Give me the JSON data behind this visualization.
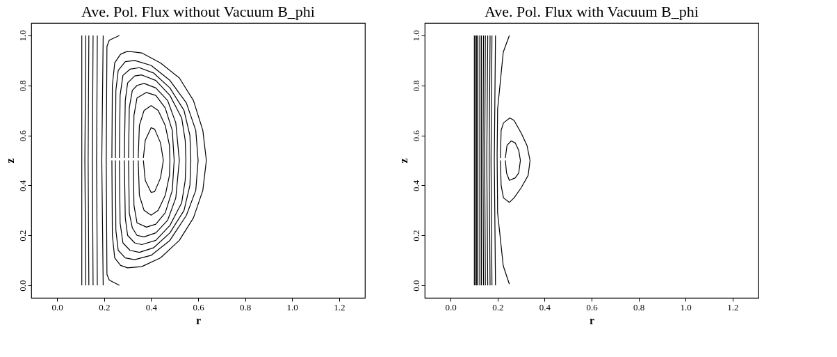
{
  "chart_data": [
    {
      "type": "line",
      "title": "Ave. Pol. Flux without Vacuum B_phi",
      "xlabel": "r",
      "ylabel": "z",
      "xlim": [
        -0.11,
        1.31
      ],
      "ylim": [
        -0.05,
        1.05
      ],
      "xticks": [
        {
          "value": 0,
          "label": "0.0"
        },
        {
          "value": 0.2,
          "label": "0.2"
        },
        {
          "value": 0.4,
          "label": "0.4"
        },
        {
          "value": 0.6,
          "label": "0.6"
        },
        {
          "value": 0.8,
          "label": "0.8"
        },
        {
          "value": 1,
          "label": "1.0"
        },
        {
          "value": 1.2,
          "label": "1.2"
        }
      ],
      "yticks": [
        {
          "value": 0,
          "label": "0.0"
        },
        {
          "value": 0.2,
          "label": "0.2"
        },
        {
          "value": 0.4,
          "label": "0.4"
        },
        {
          "value": 0.6,
          "label": "0.6"
        },
        {
          "value": 0.8,
          "label": "0.8"
        },
        {
          "value": 1,
          "label": "1.0"
        }
      ],
      "series": [
        {
          "color": "#000000",
          "x": [
            0.105,
            0.105
          ],
          "values": [
            0,
            1
          ]
        },
        {
          "color": "#000000",
          "x": [
            0.122,
            0.118,
            0.122
          ],
          "values": [
            0,
            0.5,
            1
          ]
        },
        {
          "color": "#000000",
          "x": [
            0.135,
            0.132,
            0.135
          ],
          "values": [
            0,
            0.5,
            1
          ]
        },
        {
          "color": "#000000",
          "x": [
            0.153,
            0.15,
            0.153
          ],
          "values": [
            0,
            0.5,
            1
          ]
        },
        {
          "color": "#000000",
          "x": [
            0.171,
            0.168,
            0.171
          ],
          "values": [
            0,
            0.5,
            1
          ]
        },
        {
          "color": "#000000",
          "x": [
            0.196,
            0.19,
            0.196
          ],
          "values": [
            0,
            0.5,
            1
          ]
        },
        {
          "color": "#000000",
          "x": [
            0.265,
            0.222,
            0.212,
            0.209,
            0.212,
            0.222,
            0.265
          ],
          "values": [
            1,
            0.981,
            0.956,
            0.5,
            0.044,
            0.021,
            0
          ]
        },
        {
          "color": "#000000",
          "x": [
            0.233,
            0.235,
            0.245,
            0.27,
            0.3,
            0.36,
            0.44,
            0.52,
            0.58,
            0.62,
            0.635,
            0.62,
            0.58,
            0.52,
            0.44,
            0.36,
            0.3,
            0.27,
            0.245,
            0.235,
            0.233
          ],
          "values": [
            0.51,
            0.8,
            0.89,
            0.925,
            0.937,
            0.93,
            0.89,
            0.83,
            0.74,
            0.62,
            0.5,
            0.38,
            0.27,
            0.18,
            0.11,
            0.075,
            0.07,
            0.08,
            0.11,
            0.2,
            0.5
          ]
        },
        {
          "color": "#000000",
          "x": [
            0.248,
            0.25,
            0.26,
            0.29,
            0.33,
            0.4,
            0.48,
            0.55,
            0.59,
            0.6,
            0.59,
            0.55,
            0.48,
            0.4,
            0.33,
            0.29,
            0.26,
            0.25,
            0.248
          ],
          "values": [
            0.51,
            0.78,
            0.86,
            0.895,
            0.9,
            0.88,
            0.82,
            0.73,
            0.62,
            0.5,
            0.38,
            0.28,
            0.18,
            0.12,
            0.103,
            0.11,
            0.14,
            0.22,
            0.5
          ]
        },
        {
          "color": "#000000",
          "x": [
            0.265,
            0.268,
            0.28,
            0.31,
            0.35,
            0.41,
            0.48,
            0.54,
            0.565,
            0.569,
            0.565,
            0.54,
            0.48,
            0.41,
            0.35,
            0.31,
            0.28,
            0.268,
            0.265
          ],
          "values": [
            0.51,
            0.76,
            0.84,
            0.865,
            0.871,
            0.85,
            0.79,
            0.7,
            0.6,
            0.5,
            0.4,
            0.3,
            0.21,
            0.15,
            0.132,
            0.14,
            0.17,
            0.25,
            0.5
          ]
        },
        {
          "color": "#000000",
          "x": [
            0.286,
            0.29,
            0.3,
            0.33,
            0.36,
            0.42,
            0.48,
            0.53,
            0.545,
            0.548,
            0.545,
            0.53,
            0.48,
            0.42,
            0.36,
            0.33,
            0.3,
            0.29,
            0.286
          ],
          "values": [
            0.51,
            0.74,
            0.81,
            0.838,
            0.842,
            0.82,
            0.76,
            0.67,
            0.58,
            0.5,
            0.42,
            0.33,
            0.24,
            0.18,
            0.163,
            0.17,
            0.2,
            0.27,
            0.5
          ]
        },
        {
          "color": "#000000",
          "x": [
            0.304,
            0.307,
            0.32,
            0.34,
            0.37,
            0.42,
            0.47,
            0.505,
            0.52,
            0.505,
            0.47,
            0.42,
            0.37,
            0.34,
            0.32,
            0.307,
            0.304
          ],
          "values": [
            0.51,
            0.71,
            0.78,
            0.8,
            0.808,
            0.79,
            0.74,
            0.65,
            0.5,
            0.35,
            0.26,
            0.21,
            0.194,
            0.2,
            0.23,
            0.29,
            0.5
          ]
        },
        {
          "color": "#000000",
          "x": [
            0.324,
            0.327,
            0.34,
            0.38,
            0.42,
            0.46,
            0.49,
            0.498,
            0.49,
            0.46,
            0.42,
            0.38,
            0.34,
            0.327,
            0.324
          ],
          "values": [
            0.51,
            0.68,
            0.75,
            0.772,
            0.76,
            0.71,
            0.62,
            0.5,
            0.38,
            0.29,
            0.245,
            0.233,
            0.25,
            0.32,
            0.5
          ]
        },
        {
          "color": "#000000",
          "x": [
            0.345,
            0.35,
            0.37,
            0.4,
            0.43,
            0.46,
            0.478,
            0.48,
            0.478,
            0.46,
            0.43,
            0.4,
            0.37,
            0.35,
            0.345
          ],
          "values": [
            0.51,
            0.64,
            0.7,
            0.719,
            0.7,
            0.64,
            0.56,
            0.5,
            0.44,
            0.36,
            0.3,
            0.281,
            0.3,
            0.36,
            0.5
          ]
        },
        {
          "color": "#000000",
          "x": [
            0.367,
            0.375,
            0.4,
            0.415,
            0.44,
            0.452,
            0.44,
            0.415,
            0.4,
            0.375,
            0.367
          ],
          "values": [
            0.51,
            0.58,
            0.631,
            0.625,
            0.57,
            0.5,
            0.43,
            0.375,
            0.372,
            0.42,
            0.5
          ]
        }
      ]
    },
    {
      "type": "line",
      "title": "Ave. Pol. Flux with Vacuum B_phi",
      "xlabel": "r",
      "ylabel": "z",
      "xlim": [
        -0.11,
        1.31
      ],
      "ylim": [
        -0.05,
        1.05
      ],
      "xticks": [
        {
          "value": 0,
          "label": "0.0"
        },
        {
          "value": 0.2,
          "label": "0.2"
        },
        {
          "value": 0.4,
          "label": "0.4"
        },
        {
          "value": 0.6,
          "label": "0.6"
        },
        {
          "value": 0.8,
          "label": "0.8"
        },
        {
          "value": 1,
          "label": "1.0"
        },
        {
          "value": 1.2,
          "label": "1.2"
        }
      ],
      "yticks": [
        {
          "value": 0,
          "label": "0.0"
        },
        {
          "value": 0.2,
          "label": "0.2"
        },
        {
          "value": 0.4,
          "label": "0.4"
        },
        {
          "value": 0.6,
          "label": "0.6"
        },
        {
          "value": 0.8,
          "label": "0.8"
        },
        {
          "value": 1,
          "label": "1.0"
        }
      ],
      "series": [
        {
          "color": "#000000",
          "x": [
            0.101,
            0.101
          ],
          "values": [
            0,
            1
          ]
        },
        {
          "color": "#000000",
          "x": [
            0.106,
            0.106
          ],
          "values": [
            0,
            1
          ]
        },
        {
          "color": "#000000",
          "x": [
            0.111,
            0.111
          ],
          "values": [
            0,
            1
          ]
        },
        {
          "color": "#000000",
          "x": [
            0.116,
            0.116
          ],
          "values": [
            0,
            1
          ]
        },
        {
          "color": "#000000",
          "x": [
            0.124,
            0.124
          ],
          "values": [
            0,
            1
          ]
        },
        {
          "color": "#000000",
          "x": [
            0.131,
            0.131
          ],
          "values": [
            0,
            1
          ]
        },
        {
          "color": "#000000",
          "x": [
            0.14,
            0.138,
            0.14
          ],
          "values": [
            0,
            0.5,
            1
          ]
        },
        {
          "color": "#000000",
          "x": [
            0.148,
            0.145,
            0.148
          ],
          "values": [
            0,
            0.5,
            1
          ]
        },
        {
          "color": "#000000",
          "x": [
            0.158,
            0.154,
            0.158
          ],
          "values": [
            0,
            0.5,
            1
          ]
        },
        {
          "color": "#000000",
          "x": [
            0.168,
            0.164,
            0.168
          ],
          "values": [
            0,
            0.5,
            1
          ]
        },
        {
          "color": "#000000",
          "x": [
            0.176,
            0.172,
            0.176
          ],
          "values": [
            0,
            0.5,
            1
          ]
        },
        {
          "color": "#000000",
          "x": [
            0.191,
            0.186,
            0.191
          ],
          "values": [
            0,
            0.5,
            1
          ]
        },
        {
          "color": "#000000",
          "x": [
            0.25,
            0.224,
            0.2,
            0.198,
            0.2,
            0.224,
            0.25
          ],
          "values": [
            1,
            0.933,
            0.705,
            0.518,
            0.29,
            0.078,
            0.005
          ]
        },
        {
          "color": "#000000",
          "x": [
            0.212,
            0.215,
            0.225,
            0.252,
            0.27,
            0.3,
            0.325,
            0.338,
            0.33,
            0.3,
            0.27,
            0.25,
            0.225,
            0.215,
            0.212
          ],
          "values": [
            0.51,
            0.62,
            0.65,
            0.67,
            0.66,
            0.61,
            0.56,
            0.5,
            0.44,
            0.39,
            0.35,
            0.332,
            0.35,
            0.4,
            0.5
          ]
        },
        {
          "color": "#000000",
          "x": [
            0.233,
            0.24,
            0.258,
            0.275,
            0.29,
            0.297,
            0.29,
            0.275,
            0.25,
            0.238,
            0.233
          ],
          "values": [
            0.51,
            0.56,
            0.578,
            0.57,
            0.54,
            0.5,
            0.45,
            0.43,
            0.42,
            0.45,
            0.5
          ]
        }
      ]
    }
  ]
}
